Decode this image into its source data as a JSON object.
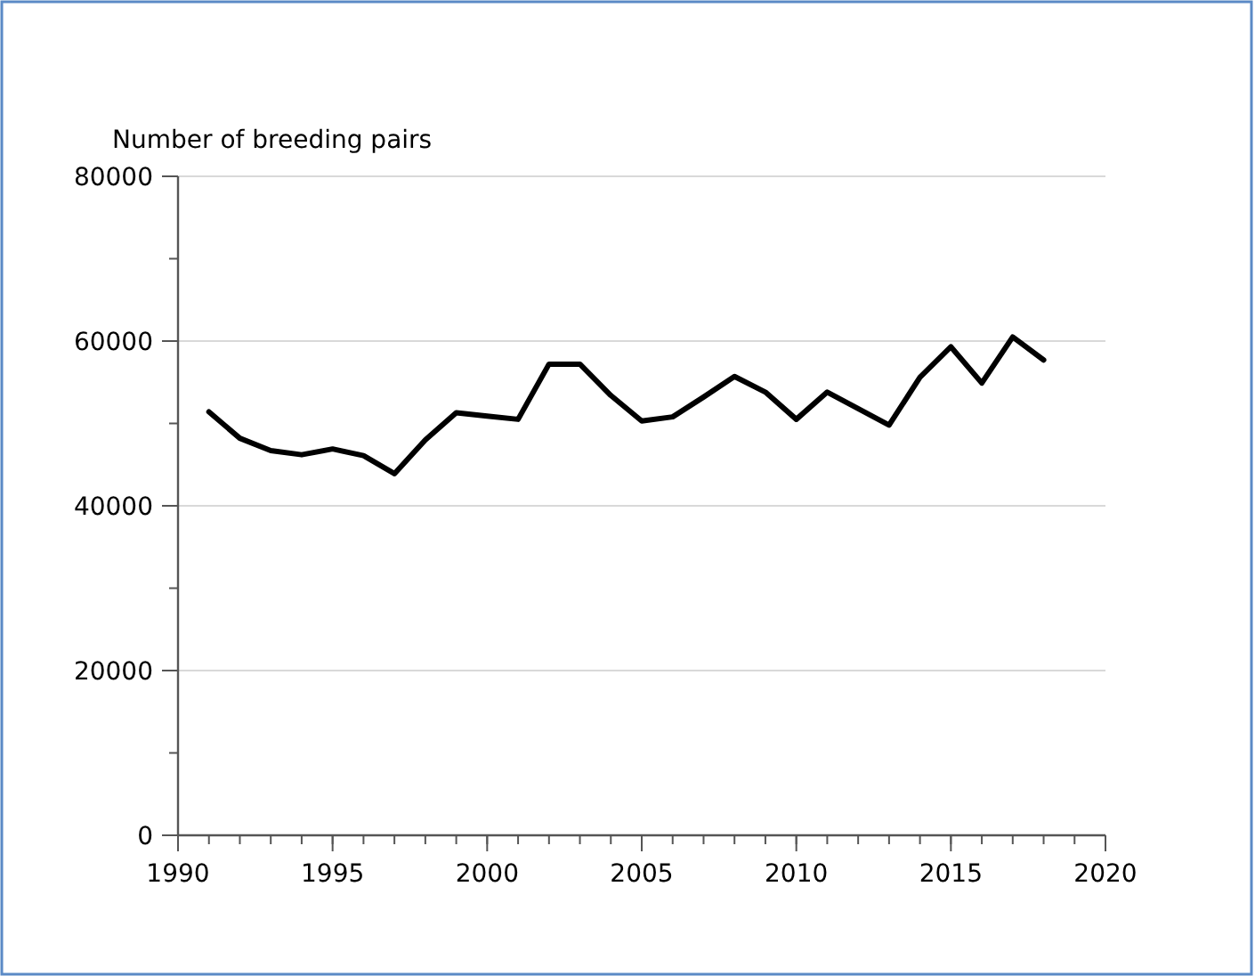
{
  "chart_data": {
    "type": "line",
    "ylabel": "Number of breeding pairs",
    "x": [
      1991,
      1992,
      1993,
      1994,
      1995,
      1996,
      1997,
      1998,
      1999,
      2000,
      2001,
      2002,
      2003,
      2004,
      2005,
      2006,
      2007,
      2008,
      2009,
      2010,
      2011,
      2012,
      2013,
      2014,
      2015,
      2016,
      2017,
      2018
    ],
    "series": [
      {
        "color": "#000000",
        "values": [
          51400,
          48200,
          46700,
          46200,
          46900,
          46100,
          43900,
          48000,
          51300,
          50900,
          50500,
          57200,
          57200,
          53400,
          50300,
          50800,
          53200,
          55700,
          53800,
          50500,
          53800,
          51800,
          49800,
          55600,
          59300,
          54900,
          60500,
          57700
        ]
      }
    ],
    "xlim": [
      1990,
      2020
    ],
    "xticks": [
      1990,
      1995,
      2000,
      2005,
      2010,
      2015,
      2020
    ],
    "ylim": [
      0,
      80000
    ],
    "yticks": [
      0,
      20000,
      40000,
      60000,
      80000
    ],
    "grid": "y",
    "marker": "none",
    "line_style": "solid"
  }
}
